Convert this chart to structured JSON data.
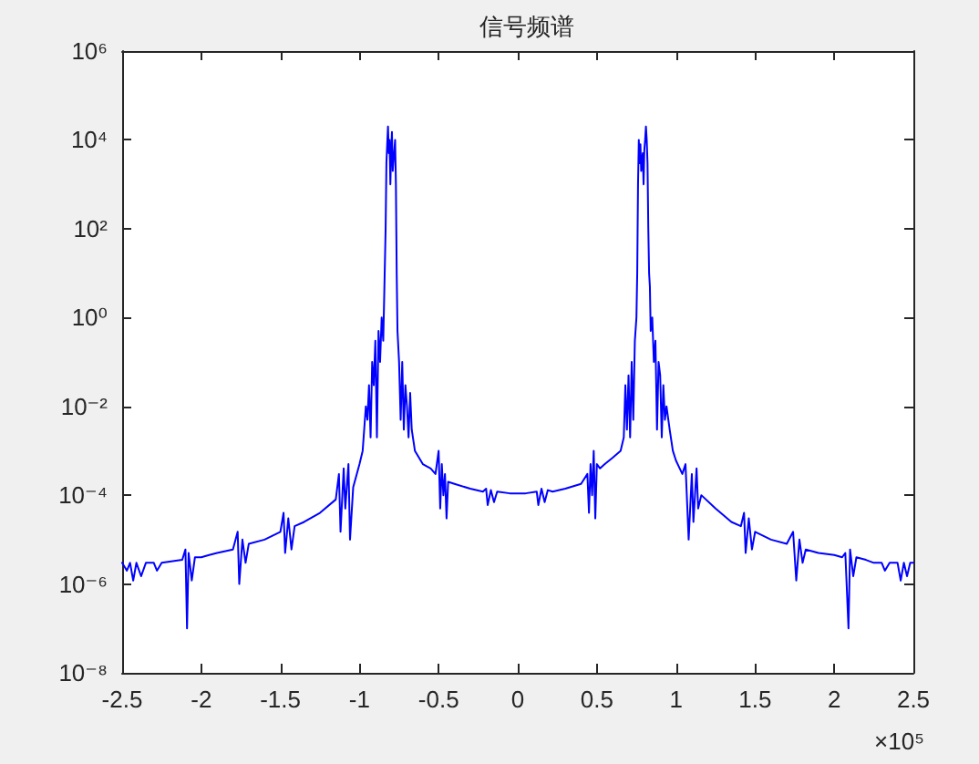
{
  "chart_data": {
    "type": "line",
    "title": "信号频谱",
    "log": true,
    "marker": "none",
    "color": "#0000ff",
    "xlim": [
      -2.5,
      2.5
    ],
    "xticks": [
      -2.5,
      -2,
      -1.5,
      -1,
      -0.5,
      0,
      0.5,
      1,
      1.5,
      2,
      2.5
    ],
    "ylim": [
      1e-08,
      1000000.0
    ],
    "yticks": [
      {
        "value": 1e-08,
        "label": "10⁻⁸"
      },
      {
        "value": 1e-06,
        "label": "10⁻⁶"
      },
      {
        "value": 0.0001,
        "label": "10⁻⁴"
      },
      {
        "value": 0.01,
        "label": "10⁻²"
      },
      {
        "value": 1,
        "label": "10⁰"
      },
      {
        "value": 100,
        "label": "10²"
      },
      {
        "value": 10000,
        "label": "10⁴"
      },
      {
        "value": 1000000,
        "label": "10⁶"
      }
    ],
    "annotations": [
      "×10⁵"
    ],
    "x": [
      -2.5,
      -2.47,
      -2.45,
      -2.43,
      -2.41,
      -2.38,
      -2.35,
      -2.3,
      -2.28,
      -2.25,
      -2.2,
      -2.12,
      -2.1,
      -2.09,
      -2.08,
      -2.06,
      -2.04,
      -2.0,
      -1.95,
      -1.9,
      -1.8,
      -1.77,
      -1.76,
      -1.74,
      -1.72,
      -1.7,
      -1.6,
      -1.5,
      -1.48,
      -1.47,
      -1.45,
      -1.43,
      -1.41,
      -1.35,
      -1.25,
      -1.15,
      -1.13,
      -1.12,
      -1.1,
      -1.09,
      -1.07,
      -1.06,
      -1.04,
      -1.0,
      -0.98,
      -0.96,
      -0.95,
      -0.94,
      -0.93,
      -0.92,
      -0.91,
      -0.9,
      -0.89,
      -0.88,
      -0.87,
      -0.86,
      -0.85,
      -0.845,
      -0.835,
      -0.83,
      -0.825,
      -0.82,
      -0.815,
      -0.81,
      -0.805,
      -0.8,
      -0.795,
      -0.79,
      -0.775,
      -0.77,
      -0.765,
      -0.76,
      -0.75,
      -0.74,
      -0.73,
      -0.72,
      -0.71,
      -0.7,
      -0.69,
      -0.68,
      -0.67,
      -0.65,
      -0.6,
      -0.55,
      -0.52,
      -0.5,
      -0.49,
      -0.48,
      -0.47,
      -0.46,
      -0.45,
      -0.44,
      -0.4,
      -0.3,
      -0.22,
      -0.2,
      -0.19,
      -0.17,
      -0.15,
      -0.13,
      -0.05,
      0,
      0.05,
      0.12,
      0.13,
      0.15,
      0.17,
      0.19,
      0.22,
      0.3,
      0.4,
      0.44,
      0.45,
      0.46,
      0.47,
      0.48,
      0.49,
      0.5,
      0.52,
      0.55,
      0.6,
      0.65,
      0.67,
      0.68,
      0.69,
      0.7,
      0.71,
      0.72,
      0.73,
      0.74,
      0.75,
      0.755,
      0.76,
      0.765,
      0.77,
      0.775,
      0.78,
      0.79,
      0.795,
      0.8,
      0.805,
      0.81,
      0.815,
      0.82,
      0.825,
      0.83,
      0.835,
      0.84,
      0.85,
      0.86,
      0.87,
      0.88,
      0.89,
      0.9,
      0.91,
      0.92,
      0.93,
      0.94,
      0.96,
      0.98,
      1.0,
      1.04,
      1.06,
      1.08,
      1.1,
      1.11,
      1.13,
      1.14,
      1.16,
      1.25,
      1.35,
      1.41,
      1.43,
      1.44,
      1.46,
      1.48,
      1.5,
      1.6,
      1.7,
      1.74,
      1.76,
      1.78,
      1.8,
      1.82,
      1.9,
      2.0,
      2.05,
      2.07,
      2.09,
      2.1,
      2.12,
      2.14,
      2.2,
      2.25,
      2.3,
      2.32,
      2.35,
      2.4,
      2.42,
      2.44,
      2.46,
      2.48,
      2.5
    ],
    "values": [
      3e-06,
      2e-06,
      3e-06,
      1.2e-06,
      3e-06,
      1.5e-06,
      3e-06,
      3e-06,
      2e-06,
      3e-06,
      3.2e-06,
      3.5e-06,
      6e-06,
      1e-07,
      5e-06,
      1.2e-06,
      4e-06,
      4e-06,
      4.5e-06,
      5e-06,
      6e-06,
      1.5e-05,
      1e-06,
      1e-05,
      3e-06,
      8e-06,
      1e-05,
      1.5e-05,
      4e-05,
      5e-06,
      3e-05,
      6e-06,
      2e-05,
      2.5e-05,
      4e-05,
      8e-05,
      0.0003,
      1.5e-05,
      0.0004,
      5e-05,
      0.0005,
      1e-05,
      0.00015,
      0.0005,
      0.001,
      0.01,
      0.005,
      0.03,
      0.002,
      0.1,
      0.03,
      0.3,
      0.002,
      0.5,
      0.1,
      1,
      0.3,
      2,
      100,
      3000,
      8000,
      20000,
      5000,
      10000,
      1000,
      6000,
      15000,
      2000,
      10000,
      1000,
      10,
      0.5,
      0.1,
      0.005,
      0.1,
      0.003,
      0.03,
      0.01,
      0.002,
      0.02,
      0.003,
      0.001,
      0.0005,
      0.0004,
      0.0003,
      0.001,
      5e-05,
      0.0005,
      0.0001,
      0.0003,
      3e-05,
      0.0002,
      0.00018,
      0.00014,
      0.00012,
      0.00014,
      6e-05,
      0.00013,
      7e-05,
      0.00012,
      0.00011,
      0.00011,
      0.00011,
      0.00012,
      6e-05,
      0.00014,
      7e-05,
      0.00013,
      0.00012,
      0.00014,
      0.00018,
      0.0003,
      4e-05,
      0.0005,
      0.0001,
      0.001,
      3e-05,
      0.0005,
      0.0004,
      0.0005,
      0.0007,
      0.001,
      0.002,
      0.03,
      0.003,
      0.05,
      0.002,
      0.1,
      0.005,
      0.3,
      1,
      10,
      1000,
      10000,
      3000,
      8000,
      2000,
      5000,
      1000,
      6000,
      10000,
      20000,
      10000,
      3000,
      100,
      10,
      5,
      0.5,
      1,
      0.1,
      0.3,
      0.003,
      0.1,
      0.05,
      0.002,
      0.03,
      0.005,
      0.01,
      0.003,
      0.001,
      0.0006,
      0.0003,
      0.0005,
      1e-05,
      0.0003,
      2.5e-05,
      0.0004,
      5e-05,
      0.0001,
      5e-05,
      2.5e-05,
      2e-05,
      4e-05,
      5e-06,
      3e-05,
      6e-06,
      1.5e-05,
      1e-05,
      8e-06,
      1.5e-05,
      1.2e-06,
      1e-05,
      3e-06,
      6e-06,
      5e-06,
      4.5e-06,
      4e-06,
      5e-06,
      1e-07,
      6e-06,
      1.5e-06,
      4e-06,
      3.5e-06,
      3e-06,
      3e-06,
      2e-06,
      3e-06,
      3e-06,
      1.2e-06,
      3e-06,
      1.5e-06,
      3e-06,
      3e-06
    ]
  }
}
